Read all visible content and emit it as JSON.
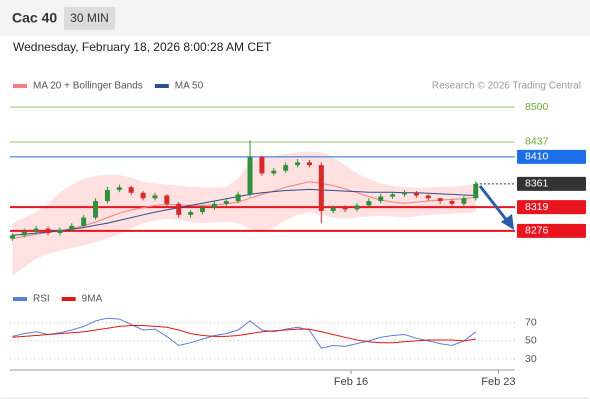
{
  "chart_data": [
    {
      "type": "candlestick",
      "title": "Cac 40",
      "timeframe": "30 MIN",
      "subtitle": "Wednesday, February 18, 2026 8:00:28 AM CET",
      "source": "Research © 2026 Trading Central",
      "categories": [
        null,
        null,
        null,
        null,
        null,
        null,
        null,
        null,
        null,
        null,
        null,
        null,
        null,
        null,
        null,
        null,
        null,
        null,
        null,
        null,
        null,
        null,
        null,
        null,
        null,
        null,
        null,
        null,
        null,
        null,
        null,
        null,
        null,
        null,
        null,
        null,
        null,
        null,
        null,
        null
      ],
      "open": [
        8262,
        8268,
        8275,
        8280,
        8272,
        8278,
        8285,
        8300,
        8330,
        8350,
        8355,
        8345,
        8335,
        8340,
        8325,
        8305,
        8310,
        8318,
        8325,
        8330,
        8342,
        8410,
        8380,
        8385,
        8395,
        8400,
        8395,
        8312,
        8318,
        8315,
        8322,
        8330,
        8338,
        8342,
        8345,
        8340,
        8335,
        8330,
        8325,
        8335
      ],
      "high": [
        8272,
        8280,
        8285,
        8284,
        8282,
        8290,
        8305,
        8335,
        8356,
        8360,
        8358,
        8348,
        8345,
        8342,
        8328,
        8314,
        8322,
        8330,
        8334,
        8347,
        8440,
        8412,
        8390,
        8400,
        8406,
        8404,
        8400,
        8322,
        8322,
        8326,
        8335,
        8343,
        8347,
        8350,
        8348,
        8342,
        8336,
        8333,
        8339,
        8366
      ],
      "low": [
        8258,
        8264,
        8270,
        8268,
        8268,
        8274,
        8281,
        8296,
        8326,
        8346,
        8341,
        8331,
        8331,
        8321,
        8300,
        8300,
        8306,
        8314,
        8321,
        8326,
        8338,
        8376,
        8376,
        8381,
        8391,
        8391,
        8290,
        8308,
        8310,
        8311,
        8318,
        8326,
        8334,
        8338,
        8336,
        8331,
        8325,
        8320,
        8321,
        8331
      ],
      "close": [
        8268,
        8275,
        8280,
        8272,
        8278,
        8285,
        8300,
        8330,
        8350,
        8355,
        8345,
        8335,
        8340,
        8325,
        8305,
        8310,
        8318,
        8325,
        8330,
        8342,
        8410,
        8380,
        8385,
        8395,
        8400,
        8395,
        8312,
        8318,
        8315,
        8322,
        8330,
        8338,
        8342,
        8345,
        8340,
        8335,
        8330,
        8325,
        8335,
        8361
      ],
      "up_color": "#2f8f3a",
      "down_color": "#d42a2a",
      "series": [
        {
          "name": "MA 20 + Bollinger Bands",
          "color": "#f08080",
          "band_color": "#ffd9d9",
          "values": [
            8262,
            8266,
            8270,
            8273,
            8276,
            8280,
            8285,
            8292,
            8300,
            8308,
            8314,
            8318,
            8322,
            8324,
            8323,
            8322,
            8322,
            8323,
            8325,
            8328,
            8335,
            8342,
            8348,
            8355,
            8360,
            8365,
            8362,
            8358,
            8352,
            8345,
            8338,
            8332,
            8328,
            8326,
            8328,
            8330,
            8332,
            8333,
            8334,
            8337
          ],
          "upper": [
            8290,
            8300,
            8310,
            8325,
            8345,
            8360,
            8370,
            8375,
            8378,
            8378,
            8372,
            8365,
            8362,
            8360,
            8358,
            8356,
            8355,
            8354,
            8356,
            8370,
            8400,
            8410,
            8412,
            8415,
            8418,
            8420,
            8418,
            8410,
            8395,
            8380,
            8370,
            8362,
            8358,
            8355,
            8354,
            8355,
            8356,
            8356,
            8358,
            8362
          ],
          "lower": [
            8195,
            8210,
            8225,
            8235,
            8240,
            8245,
            8250,
            8255,
            8262,
            8270,
            8280,
            8290,
            8295,
            8298,
            8296,
            8292,
            8290,
            8291,
            8292,
            8290,
            8280,
            8275,
            8282,
            8295,
            8305,
            8310,
            8305,
            8300,
            8298,
            8300,
            8302,
            8303,
            8302,
            8300,
            8302,
            8305,
            8306,
            8307,
            8308,
            8310
          ]
        },
        {
          "name": "MA 50",
          "color": "#2b4f8f",
          "values": [
            8268,
            8270,
            8272,
            8274,
            8276,
            8279,
            8282,
            8286,
            8290,
            8295,
            8300,
            8305,
            8310,
            8314,
            8318,
            8322,
            8326,
            8330,
            8334,
            8338,
            8342,
            8345,
            8347,
            8349,
            8350,
            8351,
            8350,
            8349,
            8348,
            8347,
            8346,
            8346,
            8346,
            8345,
            8345,
            8344,
            8343,
            8342,
            8341,
            8340
          ]
        }
      ],
      "levels": [
        {
          "value": 8500,
          "color": "#6aaa3a",
          "boxed": false,
          "dashed": false
        },
        {
          "value": 8437,
          "color": "#6aaa3a",
          "boxed": false,
          "dashed": false
        },
        {
          "value": 8410,
          "color": "#1a6ee8",
          "boxed": true,
          "dashed": false
        },
        {
          "value": 8361,
          "color": "#333333",
          "boxed": true,
          "dashed": true
        },
        {
          "value": 8319,
          "color": "#e8141e",
          "boxed": true,
          "dashed": false
        },
        {
          "value": 8276,
          "color": "#e8141e",
          "boxed": true,
          "dashed": false
        }
      ],
      "xlim": [
        -0.2,
        42.3
      ],
      "ylim": [
        8187,
        8522
      ]
    },
    {
      "type": "line",
      "series": [
        {
          "name": "RSI",
          "color": "#5b7fd6",
          "values": [
            55,
            58,
            60,
            57,
            59,
            62,
            66,
            72,
            75,
            74,
            68,
            62,
            63,
            55,
            45,
            48,
            52,
            56,
            58,
            62,
            72,
            62,
            60,
            63,
            65,
            62,
            42,
            45,
            44,
            47,
            50,
            54,
            56,
            57,
            53,
            50,
            47,
            45,
            50,
            60
          ]
        },
        {
          "name": "9MA",
          "color": "#e01818",
          "values": [
            54,
            55,
            56,
            57,
            58,
            59,
            60,
            62,
            64,
            66,
            67,
            67,
            66,
            65,
            62,
            58,
            56,
            55,
            55,
            56,
            58,
            60,
            61,
            62,
            63,
            63,
            60,
            57,
            54,
            51,
            49,
            48,
            48,
            49,
            50,
            51,
            51,
            51,
            50,
            52
          ]
        }
      ],
      "xlim": [
        -0.2,
        42.3
      ],
      "ylim": [
        18,
        84
      ],
      "yticks": [
        30,
        50,
        70
      ],
      "grid": true,
      "xticks": [
        {
          "value": 28.5,
          "label": "Feb 16"
        },
        {
          "value": 40.9,
          "label": "Feb 23"
        }
      ]
    }
  ]
}
